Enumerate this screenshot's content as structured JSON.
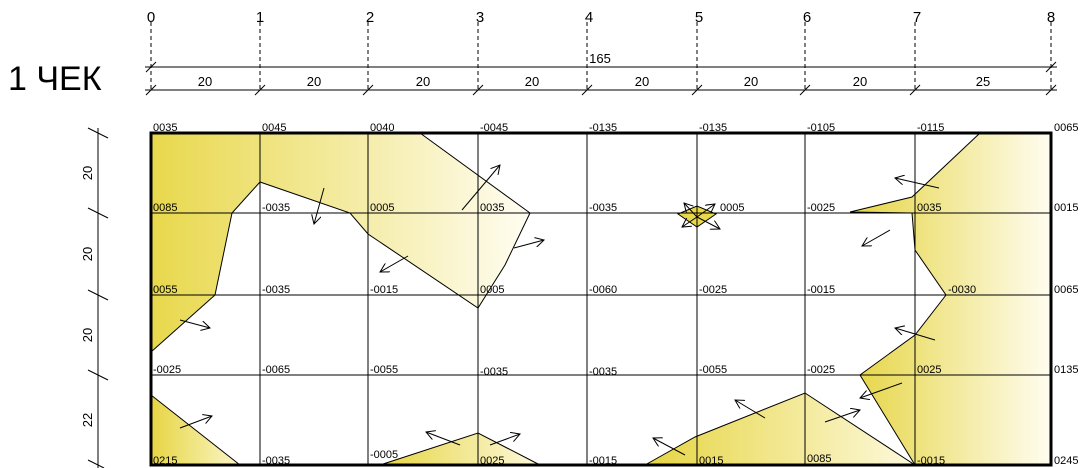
{
  "title": "1 ЧЕК",
  "axis_numbers": [
    "0",
    "1",
    "2",
    "3",
    "4",
    "5",
    "6",
    "7",
    "8"
  ],
  "total_width": "165",
  "column_widths": [
    "20",
    "20",
    "20",
    "20",
    "20",
    "20",
    "20",
    "25"
  ],
  "row_heights": [
    "20",
    "20",
    "20",
    "22"
  ],
  "values": [
    [
      "0035",
      "0045",
      "0040",
      "-0045",
      "-0135",
      "-0135",
      "-0105",
      "-0115",
      "0065"
    ],
    [
      "0085",
      "-0035",
      "0005",
      "0035",
      "-0035",
      "0005",
      "-0025",
      "0035",
      "0015"
    ],
    [
      "0055",
      "-0035",
      "-0015",
      "0005",
      "-0060",
      "-0025",
      "-0015",
      "-0030",
      "0065"
    ],
    [
      "-0025",
      "-0065",
      "-0055",
      "-0035",
      "-0035",
      "-0055",
      "-0025",
      "0025",
      "0135"
    ],
    [
      "0215",
      "-0035",
      "-0005",
      "0025",
      "-0015",
      "0015",
      "0085",
      "-0015",
      "0245"
    ]
  ],
  "colors": {
    "fill_yellow": "#e8d84a",
    "line": "#000000"
  }
}
